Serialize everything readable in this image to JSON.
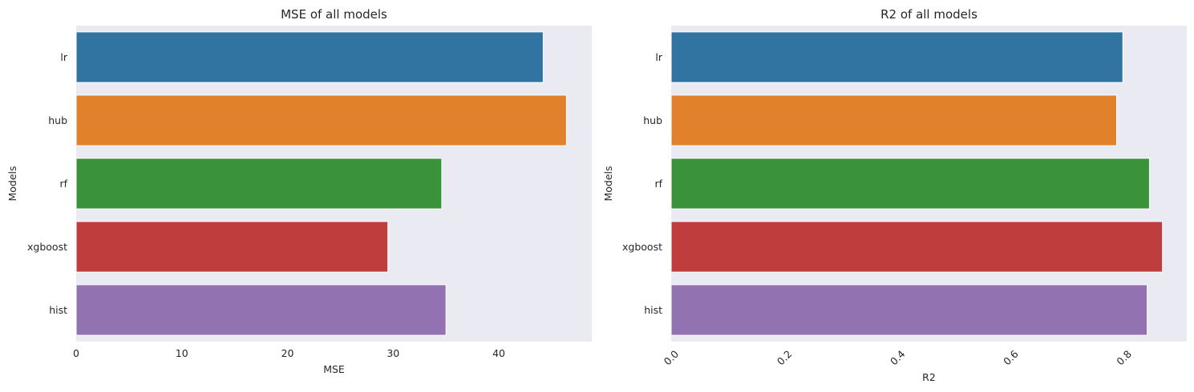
{
  "chart_data": [
    {
      "type": "bar",
      "orientation": "horizontal",
      "title": "MSE of all models",
      "xlabel": "MSE",
      "ylabel": "Models",
      "categories": [
        "lr",
        "hub",
        "rf",
        "xgboost",
        "hist"
      ],
      "values": [
        44.2,
        46.4,
        34.6,
        29.5,
        35.0
      ],
      "colors": [
        "#3274a1",
        "#e1812c",
        "#3a923a",
        "#c03d3e",
        "#9372b2"
      ],
      "xlim": [
        0,
        48.8
      ],
      "xticks": [
        0,
        10,
        20,
        30,
        40
      ],
      "xtick_labels": [
        "0",
        "10",
        "20",
        "30",
        "40"
      ],
      "xtick_rotation": 0,
      "grid": false,
      "background": "#eaeaf2"
    },
    {
      "type": "bar",
      "orientation": "horizontal",
      "title": "R2 of all models",
      "xlabel": "R2",
      "ylabel": "Models",
      "categories": [
        "lr",
        "hub",
        "rf",
        "xgboost",
        "hist"
      ],
      "values": [
        0.798,
        0.787,
        0.845,
        0.868,
        0.841
      ],
      "colors": [
        "#3274a1",
        "#e1812c",
        "#3a923a",
        "#c03d3e",
        "#9372b2"
      ],
      "xlim": [
        0,
        0.911
      ],
      "xticks": [
        0.0,
        0.2,
        0.4,
        0.6,
        0.8
      ],
      "xtick_labels": [
        "0.0",
        "0.2",
        "0.4",
        "0.6",
        "0.8"
      ],
      "xtick_rotation": -45,
      "grid": false,
      "background": "#eaeaf2"
    }
  ]
}
